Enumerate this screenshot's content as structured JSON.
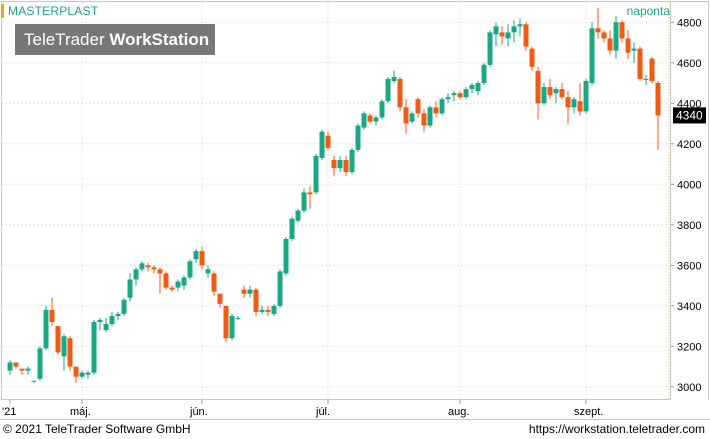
{
  "header": {
    "instrument": "MASTERPLAST",
    "period": "naponta",
    "brand_light": "TeleTrader ",
    "brand_bold": "WorkStation"
  },
  "footer": {
    "copyright": "© 2021  TeleTrader Software GmbH",
    "url": "https://workstation.teletrader.com"
  },
  "colors": {
    "up": "#1aa784",
    "down": "#f05a14",
    "accent": "#f7a11c",
    "title_text": "#1aa784",
    "grid": "#cfcfcf",
    "last_price_bg": "#000000",
    "last_price_text": "#ffffff",
    "cursor_line": "#f5c842"
  },
  "chart_data": {
    "type": "candlestick",
    "title": "MASTERPLAST",
    "xlabel": "",
    "ylabel": "",
    "ylim": [
      2940,
      4900
    ],
    "yticks": [
      3000,
      3200,
      3400,
      3600,
      3800,
      4000,
      4200,
      4400,
      4600,
      4800
    ],
    "last_price": "4340",
    "grid": true,
    "x_labels": [
      {
        "label": "'21",
        "index": 0
      },
      {
        "label": "máj.",
        "index": 12
      },
      {
        "label": "jún.",
        "index": 32
      },
      {
        "label": "júl.",
        "index": 53
      },
      {
        "label": "aug.",
        "index": 75
      },
      {
        "label": "szept.",
        "index": 96
      }
    ],
    "candles": [
      [
        3080,
        3130,
        3060,
        3120
      ],
      [
        3120,
        3110,
        3090,
        3100
      ],
      [
        3090,
        3090,
        3060,
        3080
      ],
      [
        3080,
        3100,
        3060,
        3090
      ],
      [
        3030,
        3030,
        3020,
        3030
      ],
      [
        3040,
        3200,
        3030,
        3190
      ],
      [
        3190,
        3400,
        3180,
        3380
      ],
      [
        3380,
        3440,
        3300,
        3320
      ],
      [
        3300,
        3300,
        3160,
        3170
      ],
      [
        3150,
        3260,
        3080,
        3250
      ],
      [
        3240,
        3250,
        3080,
        3100
      ],
      [
        3100,
        3100,
        3020,
        3050
      ],
      [
        3050,
        3080,
        3040,
        3070
      ],
      [
        3060,
        3080,
        3040,
        3070
      ],
      [
        3070,
        3330,
        3060,
        3320
      ],
      [
        3320,
        3340,
        3280,
        3330
      ],
      [
        3280,
        3340,
        3270,
        3310
      ],
      [
        3310,
        3370,
        3300,
        3350
      ],
      [
        3350,
        3370,
        3330,
        3360
      ],
      [
        3360,
        3440,
        3350,
        3430
      ],
      [
        3440,
        3560,
        3420,
        3530
      ],
      [
        3530,
        3590,
        3500,
        3580
      ],
      [
        3580,
        3620,
        3570,
        3610
      ],
      [
        3600,
        3610,
        3570,
        3590
      ],
      [
        3590,
        3600,
        3560,
        3580
      ],
      [
        3580,
        3590,
        3460,
        3560
      ],
      [
        3560,
        3570,
        3480,
        3490
      ],
      [
        3490,
        3500,
        3470,
        3480
      ],
      [
        3490,
        3530,
        3470,
        3520
      ],
      [
        3500,
        3550,
        3480,
        3540
      ],
      [
        3540,
        3630,
        3530,
        3620
      ],
      [
        3630,
        3680,
        3610,
        3670
      ],
      [
        3670,
        3690,
        3580,
        3600
      ],
      [
        3560,
        3600,
        3540,
        3580
      ],
      [
        3560,
        3570,
        3450,
        3470
      ],
      [
        3460,
        3460,
        3390,
        3410
      ],
      [
        3400,
        3400,
        3220,
        3240
      ],
      [
        3240,
        3360,
        3230,
        3350
      ],
      [
        3340,
        3350,
        3330,
        3340
      ],
      [
        3480,
        3500,
        3440,
        3460
      ],
      [
        3460,
        3500,
        3440,
        3480
      ],
      [
        3480,
        3490,
        3350,
        3370
      ],
      [
        3370,
        3400,
        3360,
        3380
      ],
      [
        3380,
        3400,
        3350,
        3370
      ],
      [
        3360,
        3410,
        3350,
        3400
      ],
      [
        3400,
        3580,
        3390,
        3570
      ],
      [
        3560,
        3740,
        3550,
        3730
      ],
      [
        3730,
        3840,
        3720,
        3830
      ],
      [
        3820,
        3880,
        3810,
        3870
      ],
      [
        3870,
        3980,
        3860,
        3960
      ],
      [
        3960,
        3990,
        3880,
        3950
      ],
      [
        3960,
        4150,
        3950,
        4140
      ],
      [
        4130,
        4270,
        4120,
        4260
      ],
      [
        4240,
        4260,
        4170,
        4180
      ],
      [
        4120,
        4140,
        4040,
        4080
      ],
      [
        4080,
        4140,
        4060,
        4120
      ],
      [
        4120,
        4140,
        4040,
        4060
      ],
      [
        4060,
        4180,
        4050,
        4170
      ],
      [
        4170,
        4300,
        4160,
        4290
      ],
      [
        4280,
        4360,
        4270,
        4350
      ],
      [
        4340,
        4350,
        4300,
        4310
      ],
      [
        4310,
        4340,
        4290,
        4330
      ],
      [
        4330,
        4420,
        4320,
        4410
      ],
      [
        4410,
        4530,
        4400,
        4520
      ],
      [
        4510,
        4560,
        4500,
        4530
      ],
      [
        4520,
        4530,
        4360,
        4380
      ],
      [
        4380,
        4420,
        4250,
        4300
      ],
      [
        4310,
        4360,
        4300,
        4350
      ],
      [
        4420,
        4430,
        4330,
        4350
      ],
      [
        4350,
        4370,
        4260,
        4290
      ],
      [
        4290,
        4390,
        4280,
        4380
      ],
      [
        4380,
        4410,
        4330,
        4350
      ],
      [
        4350,
        4430,
        4340,
        4420
      ],
      [
        4420,
        4450,
        4400,
        4430
      ],
      [
        4440,
        4460,
        4410,
        4450
      ],
      [
        4450,
        4460,
        4420,
        4430
      ],
      [
        4430,
        4480,
        4420,
        4470
      ],
      [
        4470,
        4500,
        4450,
        4490
      ],
      [
        4460,
        4510,
        4440,
        4500
      ],
      [
        4500,
        4600,
        4490,
        4590
      ],
      [
        4590,
        4760,
        4580,
        4750
      ],
      [
        4740,
        4800,
        4680,
        4780
      ],
      [
        4750,
        4780,
        4690,
        4730
      ],
      [
        4720,
        4790,
        4680,
        4750
      ],
      [
        4750,
        4810,
        4700,
        4780
      ],
      [
        4780,
        4820,
        4730,
        4790
      ],
      [
        4790,
        4800,
        4660,
        4680
      ],
      [
        4670,
        4680,
        4560,
        4580
      ],
      [
        4560,
        4580,
        4320,
        4400
      ],
      [
        4400,
        4500,
        4390,
        4480
      ],
      [
        4480,
        4520,
        4420,
        4440
      ],
      [
        4450,
        4480,
        4400,
        4470
      ],
      [
        4470,
        4500,
        4420,
        4430
      ],
      [
        4430,
        4460,
        4300,
        4380
      ],
      [
        4380,
        4430,
        4350,
        4420
      ],
      [
        4410,
        4500,
        4340,
        4360
      ],
      [
        4360,
        4520,
        4350,
        4510
      ],
      [
        4500,
        4800,
        4490,
        4770
      ],
      [
        4770,
        4870,
        4720,
        4750
      ],
      [
        4750,
        4760,
        4700,
        4720
      ],
      [
        4720,
        4760,
        4640,
        4660
      ],
      [
        4660,
        4830,
        4620,
        4800
      ],
      [
        4800,
        4810,
        4700,
        4720
      ],
      [
        4720,
        4760,
        4620,
        4650
      ],
      [
        4660,
        4700,
        4600,
        4670
      ],
      [
        4670,
        4680,
        4510,
        4520
      ],
      [
        4520,
        4540,
        4490,
        4520
      ],
      [
        4620,
        4630,
        4500,
        4510
      ],
      [
        4500,
        4510,
        4170,
        4340
      ]
    ]
  }
}
